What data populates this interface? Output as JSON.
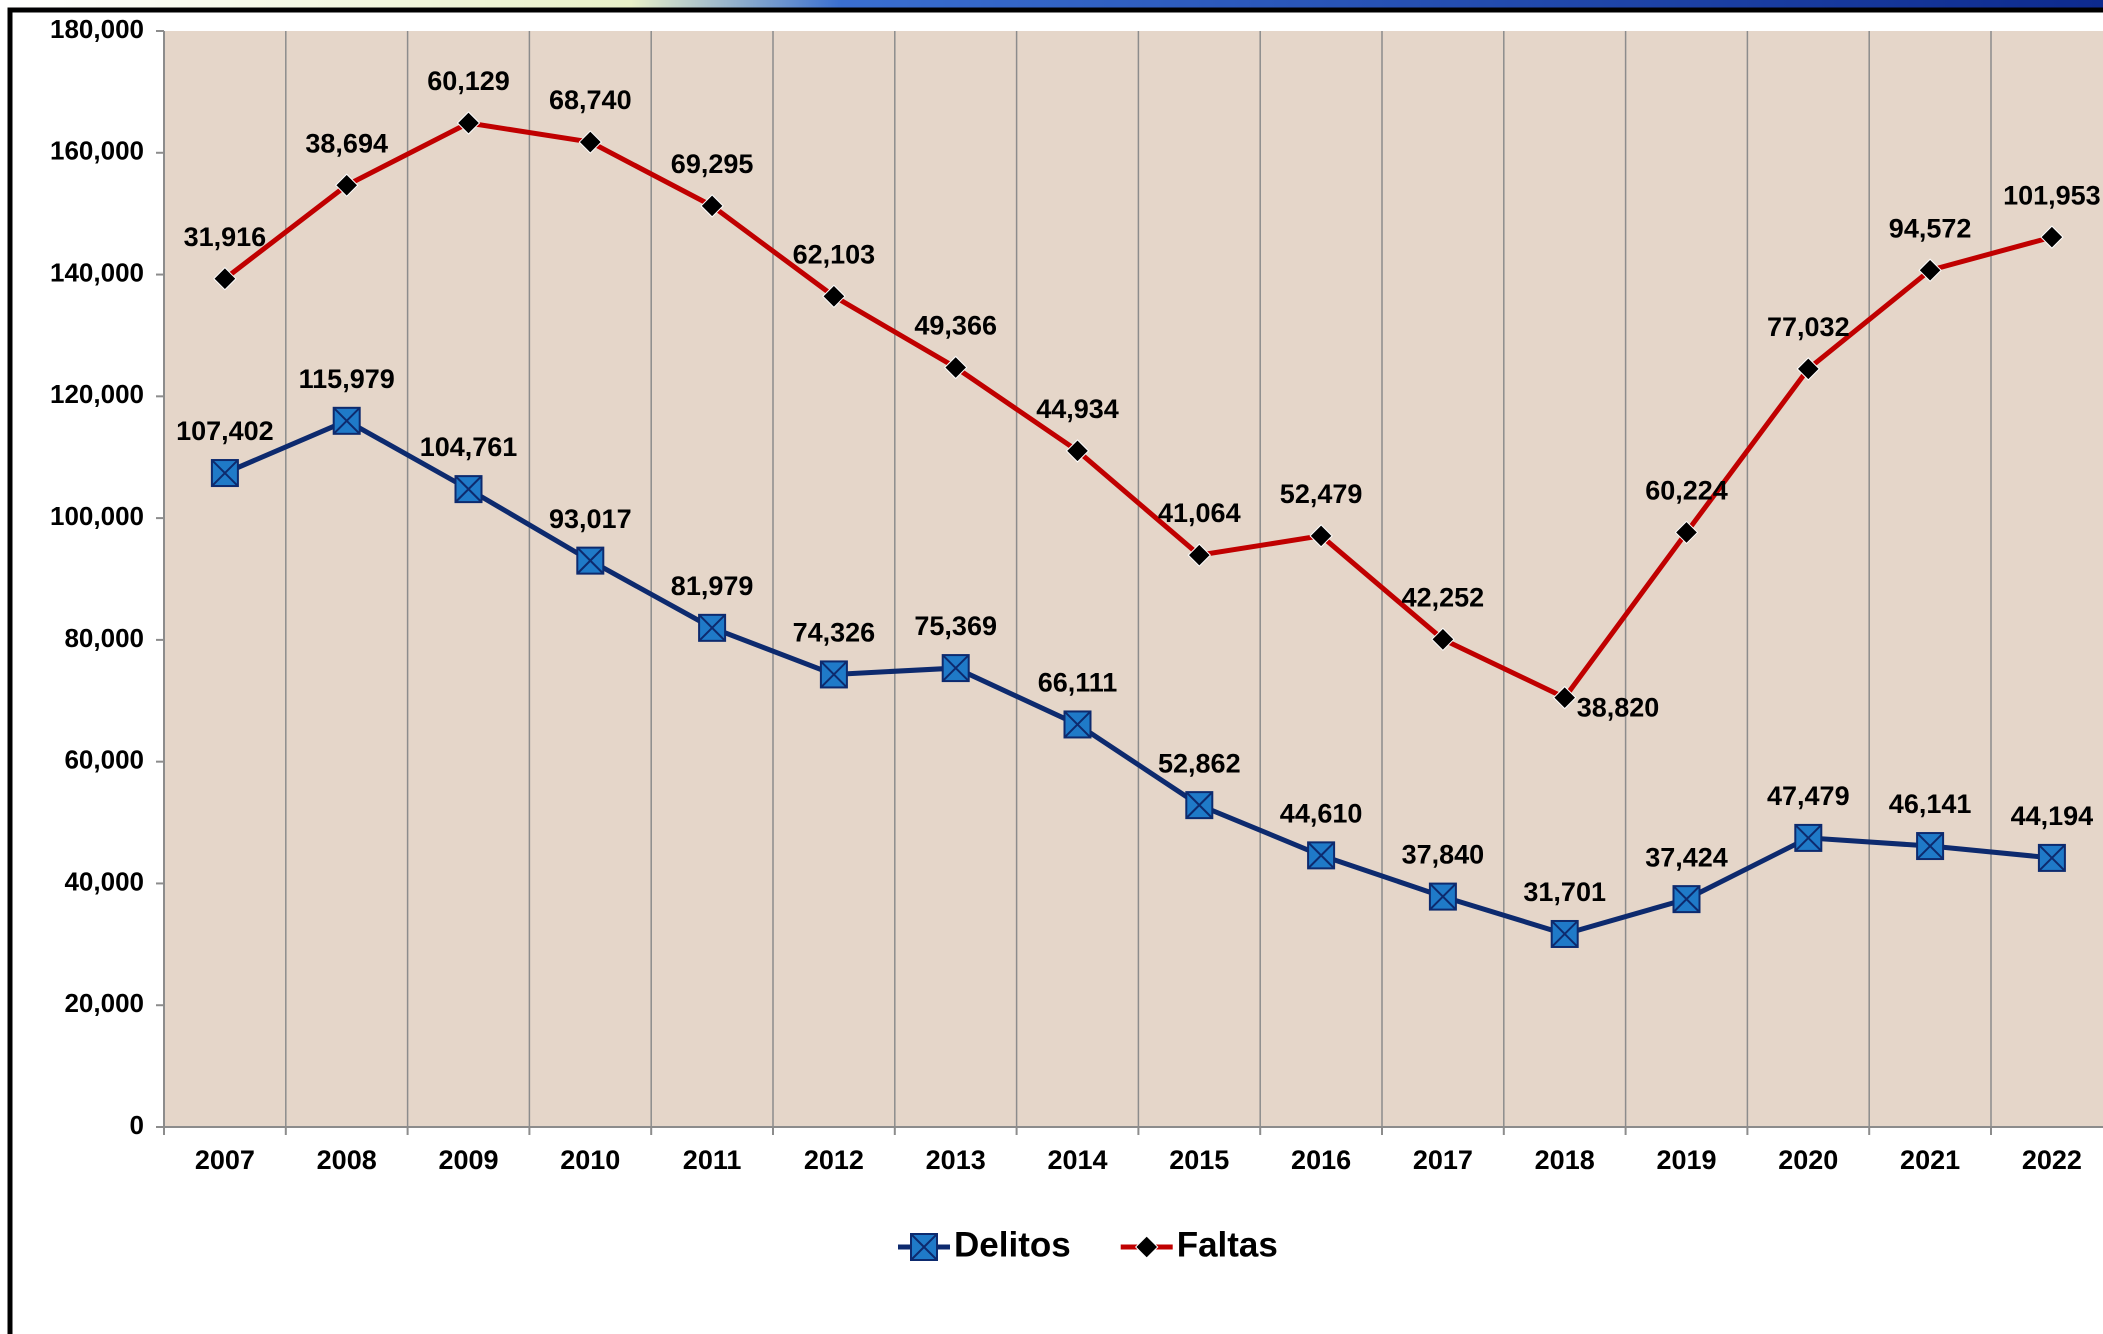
{
  "chart_data": {
    "type": "stacked-line",
    "categories": [
      "2007",
      "2008",
      "2009",
      "2010",
      "2011",
      "2012",
      "2013",
      "2014",
      "2015",
      "2016",
      "2017",
      "2018",
      "2019",
      "2020",
      "2021",
      "2022"
    ],
    "series": [
      {
        "name": "Delitos",
        "color": "#0d2a6e",
        "marker_color": "#1f7ac8",
        "values": [
          107402,
          115979,
          104761,
          93017,
          81979,
          74326,
          75369,
          66111,
          52862,
          44610,
          37840,
          31701,
          37424,
          47479,
          46141,
          44194
        ],
        "value_labels": [
          "107,402",
          "115,979",
          "104,761",
          "93,017",
          "81,979",
          "74,326",
          "75,369",
          "66,111",
          "52,862",
          "44,610",
          "37,840",
          "31,701",
          "37,424",
          "47,479",
          "46,141",
          "44,194"
        ]
      },
      {
        "name": "Faltas",
        "color": "#c00000",
        "marker_color": "#000000",
        "values": [
          31916,
          38694,
          60129,
          68740,
          69295,
          62103,
          49366,
          44934,
          41064,
          52479,
          42252,
          38820,
          60224,
          77032,
          94572,
          101953
        ],
        "value_labels": [
          "31,916",
          "38,694",
          "60,129",
          "68,740",
          "69,295",
          "62,103",
          "49,366",
          "44,934",
          "41,064",
          "52,479",
          "42,252",
          "38,820",
          "60,224",
          "77,032",
          "94,572",
          "101,953"
        ]
      }
    ],
    "ylim": [
      0,
      180000
    ],
    "yticks": [
      0,
      {
        "value": 20000,
        "label": "20,000"
      },
      {
        "value": 40000,
        "label": "40,000"
      },
      {
        "value": 60000,
        "label": "60,000"
      },
      {
        "value": 80000,
        "label": "80,000"
      },
      {
        "value": 100000,
        "label": "100,000"
      },
      {
        "value": 120000,
        "label": "120,000"
      },
      {
        "value": 140000,
        "label": "140,000"
      },
      {
        "value": 160000,
        "label": "160,000"
      },
      {
        "value": 180000,
        "label": "180,000"
      }
    ],
    "legend": "bottom"
  }
}
